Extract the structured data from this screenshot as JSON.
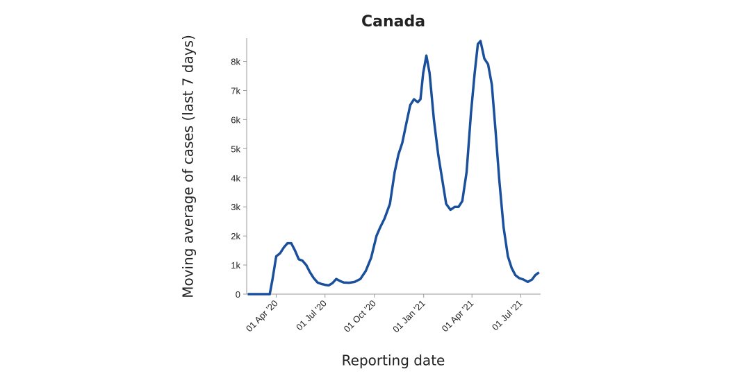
{
  "chart_data": {
    "type": "line",
    "title": "Canada",
    "x_label": "Reporting date",
    "y_label": "Moving average of cases (last 7 days)",
    "x": [
      "2020-02-08",
      "2020-03-10",
      "2020-03-20",
      "2020-03-25",
      "2020-04-01",
      "2020-04-08",
      "2020-04-15",
      "2020-04-22",
      "2020-04-29",
      "2020-05-06",
      "2020-05-13",
      "2020-05-20",
      "2020-05-27",
      "2020-06-03",
      "2020-06-10",
      "2020-06-17",
      "2020-06-24",
      "2020-07-01",
      "2020-07-08",
      "2020-07-15",
      "2020-07-22",
      "2020-07-29",
      "2020-08-05",
      "2020-08-15",
      "2020-08-25",
      "2020-09-05",
      "2020-09-15",
      "2020-09-25",
      "2020-10-05",
      "2020-10-12",
      "2020-10-20",
      "2020-10-30",
      "2020-11-08",
      "2020-11-15",
      "2020-11-22",
      "2020-11-30",
      "2020-12-07",
      "2020-12-14",
      "2020-12-21",
      "2020-12-26",
      "2020-12-31",
      "2021-01-06",
      "2021-01-12",
      "2021-01-20",
      "2021-01-28",
      "2021-02-05",
      "2021-02-12",
      "2021-02-20",
      "2021-02-28",
      "2021-03-07",
      "2021-03-14",
      "2021-03-22",
      "2021-03-30",
      "2021-04-06",
      "2021-04-12",
      "2021-04-17",
      "2021-04-24",
      "2021-05-01",
      "2021-05-08",
      "2021-05-15",
      "2021-05-22",
      "2021-05-30",
      "2021-06-07",
      "2021-06-14",
      "2021-06-21",
      "2021-06-28",
      "2021-07-06",
      "2021-07-14",
      "2021-07-22",
      "2021-07-28",
      "2021-08-04"
    ],
    "series": [
      {
        "color": "#1a4f9c",
        "values": [
          0,
          0,
          0,
          500,
          1300,
          1400,
          1600,
          1750,
          1750,
          1500,
          1200,
          1150,
          1000,
          750,
          550,
          400,
          350,
          320,
          300,
          380,
          520,
          450,
          400,
          390,
          420,
          520,
          800,
          1250,
          2000,
          2300,
          2600,
          3100,
          4200,
          4800,
          5200,
          5900,
          6500,
          6700,
          6600,
          6700,
          7600,
          8200,
          7600,
          6000,
          4800,
          3900,
          3100,
          2900,
          3000,
          3000,
          3200,
          4200,
          6200,
          7600,
          8600,
          8700,
          8100,
          7900,
          7200,
          5600,
          3900,
          2300,
          1300,
          900,
          650,
          550,
          500,
          420,
          500,
          650,
          750
        ]
      }
    ],
    "xlim": [
      "2020-02-06",
      "2021-08-07"
    ],
    "xticks": [
      {
        "value": "2020-04-01",
        "label": "01 Apr '20"
      },
      {
        "value": "2020-07-01",
        "label": "01 Jul '20"
      },
      {
        "value": "2020-10-01",
        "label": "01 Oct '20"
      },
      {
        "value": "2021-01-01",
        "label": "01 Jan '21"
      },
      {
        "value": "2021-04-01",
        "label": "01 Apr '21"
      },
      {
        "value": "2021-07-01",
        "label": "01 Jul '21"
      }
    ],
    "ylim": [
      0,
      8800
    ],
    "yticks": [
      0,
      {
        "value": 1000,
        "label": "1k"
      },
      {
        "value": 2000,
        "label": "2k"
      },
      {
        "value": 3000,
        "label": "3k"
      },
      {
        "value": 4000,
        "label": "4k"
      },
      {
        "value": 5000,
        "label": "5k"
      },
      {
        "value": 6000,
        "label": "6k"
      },
      {
        "value": 7000,
        "label": "7k"
      },
      {
        "value": 8000,
        "label": "8k"
      }
    ]
  }
}
